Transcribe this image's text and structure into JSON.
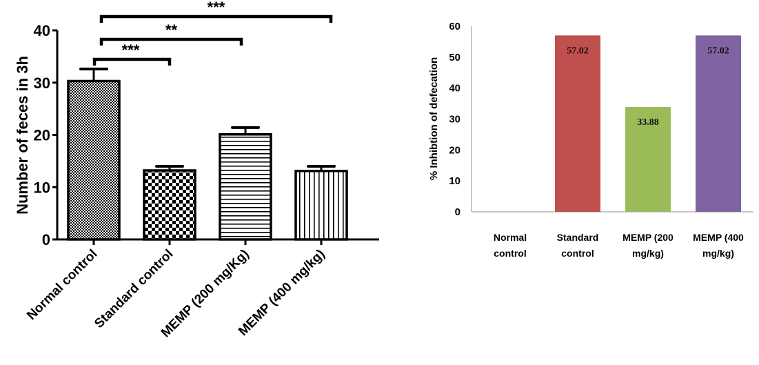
{
  "chart_data": [
    {
      "type": "bar",
      "title": "",
      "xlabel": "",
      "ylabel": "Number of feces in 3h",
      "ylim": [
        0,
        40
      ],
      "yticks": [
        0,
        10,
        20,
        30,
        40
      ],
      "categories": [
        "Normal control",
        "Standard control",
        "MEMP (200 mg/Kg)",
        "MEMP (400 mg/kg)"
      ],
      "values": [
        30.3,
        13.2,
        20.1,
        13.1
      ],
      "error_upper": [
        32.6,
        14.0,
        21.4,
        14.0
      ],
      "patterns": [
        "fine-checker",
        "coarse-checker",
        "horizontal-lines",
        "vertical-lines"
      ],
      "grid": false,
      "significance": [
        {
          "from": 0,
          "to": 1,
          "label": "***"
        },
        {
          "from": 0,
          "to": 2,
          "label": "**"
        },
        {
          "from": 0,
          "to": 3,
          "label": "***"
        }
      ]
    },
    {
      "type": "bar",
      "title": "",
      "xlabel": "",
      "ylabel": "% Inhibtion of defecation",
      "ylim": [
        0,
        60
      ],
      "yticks": [
        0,
        10,
        20,
        30,
        40,
        50,
        60
      ],
      "categories": [
        [
          "Normal",
          "control"
        ],
        [
          "Standard",
          "control"
        ],
        [
          "MEMP (200",
          "mg/kg)"
        ],
        [
          "MEMP (400",
          "mg/kg)"
        ]
      ],
      "values": [
        0,
        57.02,
        33.88,
        57.02
      ],
      "data_labels": [
        "",
        "57.02",
        "33.88",
        "57.02"
      ],
      "colors": [
        "#ffffff",
        "#c0504d",
        "#9bbb59",
        "#8064a2"
      ],
      "grid": false
    }
  ]
}
